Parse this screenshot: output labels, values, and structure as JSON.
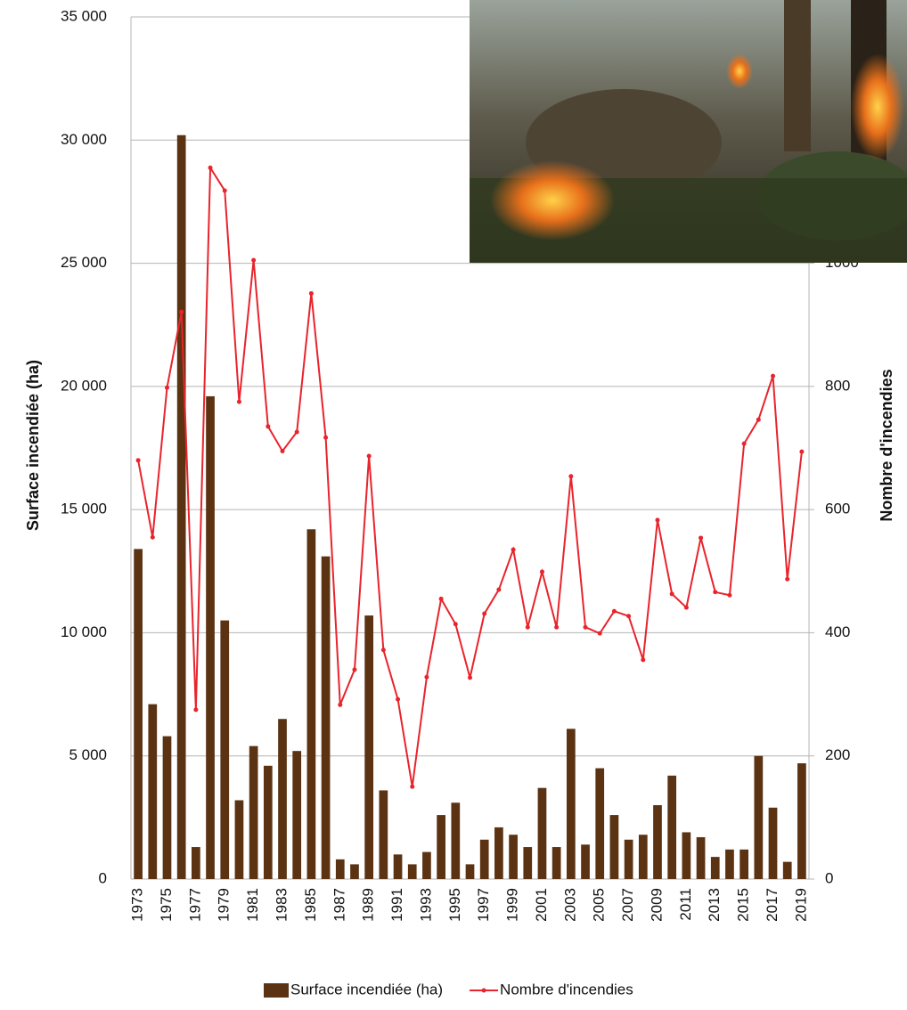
{
  "chart_data": {
    "type": "bar-line",
    "categories": [
      "1973",
      null,
      "1975",
      null,
      "1977",
      null,
      "1979",
      null,
      "1981",
      null,
      "1983",
      null,
      "1985",
      null,
      "1987",
      null,
      "1989",
      null,
      "1991",
      null,
      "1993",
      null,
      "1995",
      null,
      "1997",
      null,
      "1999",
      null,
      "2001",
      null,
      "2003",
      null,
      "2005",
      null,
      "2007",
      null,
      "2009",
      null,
      "2011",
      null,
      "2013",
      null,
      "2015",
      null,
      "2017",
      null,
      "2019"
    ],
    "y_label": "Surface incendiée (ha)",
    "y2_label": "Nombre d'incendies",
    "ylim": [
      0,
      35000
    ],
    "yticks": [
      0,
      {
        "value": 5000,
        "label": "5 000"
      },
      {
        "value": 10000,
        "label": "10 000"
      },
      {
        "value": 15000,
        "label": "15 000"
      },
      {
        "value": 20000,
        "label": "20 000"
      },
      {
        "value": 25000,
        "label": "25 000"
      },
      {
        "value": 30000,
        "label": "30 000"
      },
      {
        "value": 35000,
        "label": "35 000"
      }
    ],
    "y2lim": [
      0,
      1400
    ],
    "y2ticks": [
      0,
      200,
      400,
      600,
      800,
      1000
    ],
    "grid": true,
    "legend": "bottom",
    "series": [
      {
        "name": "Surface incendiée (ha)",
        "type": "bar",
        "color": "#5b3313",
        "values": [
          13400,
          7100,
          5800,
          30200,
          1300,
          19600,
          10500,
          3200,
          5400,
          4600,
          6500,
          5200,
          14200,
          13100,
          800,
          600,
          10700,
          3600,
          1000,
          600,
          1100,
          2600,
          3100,
          600,
          1600,
          2100,
          1800,
          1300,
          3700,
          1300,
          6100,
          1400,
          4500,
          2600,
          1600,
          1800,
          3000,
          4200,
          1900,
          1700,
          900,
          1200,
          1200,
          5000,
          2900,
          700,
          4700
        ]
      },
      {
        "name": "Nombre d'incendies",
        "type": "line",
        "color": "#e8242c",
        "axis": "y2",
        "values": [
          680,
          555,
          798,
          921,
          275,
          1155,
          1118,
          775,
          1005,
          735,
          695,
          726,
          951,
          717,
          283,
          340,
          687,
          372,
          292,
          150,
          328,
          455,
          414,
          327,
          431,
          470,
          535,
          409,
          499,
          409,
          654,
          409,
          399,
          435,
          427,
          356,
          583,
          463,
          441,
          554,
          466,
          461,
          707,
          746,
          817,
          487,
          694
        ]
      }
    ]
  }
}
